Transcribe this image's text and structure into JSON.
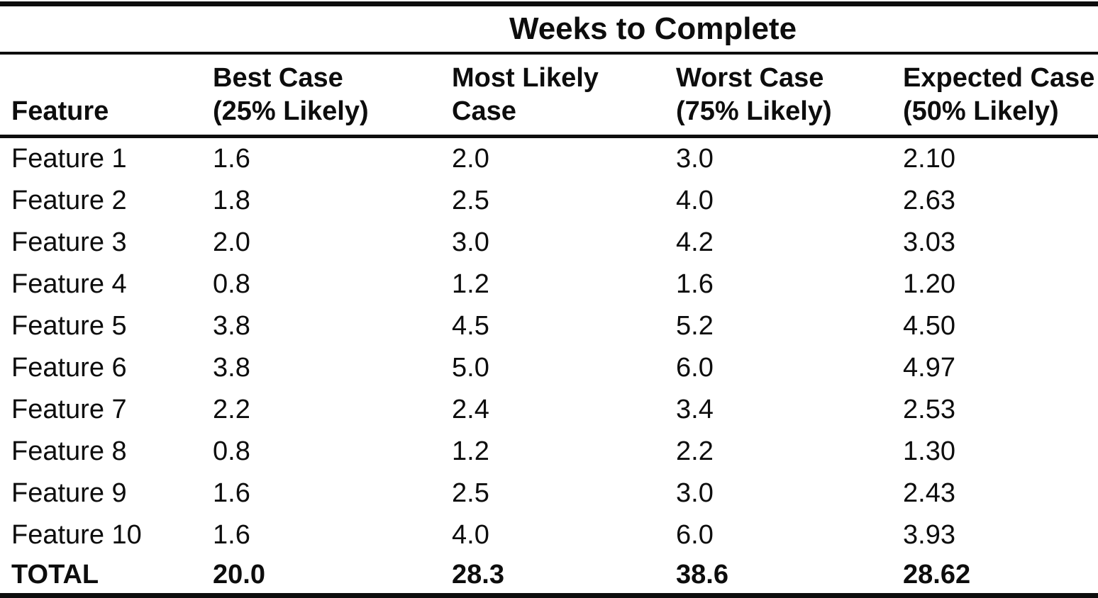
{
  "colors": {
    "ink": "#0d0d0d",
    "paper": "#ffffff"
  },
  "table": {
    "spanner": "Weeks to Complete",
    "columns": [
      {
        "line1": "Feature",
        "line2": ""
      },
      {
        "line1": "Best Case",
        "line2": "(25% Likely)"
      },
      {
        "line1": "Most Likely",
        "line2": "Case"
      },
      {
        "line1": "Worst Case",
        "line2": "(75% Likely)"
      },
      {
        "line1": "Expected Case",
        "line2": "(50% Likely)"
      }
    ],
    "rows": [
      {
        "feature": "Feature 1",
        "best": "1.6",
        "likely": "2.0",
        "worst": "3.0",
        "expected": "2.10"
      },
      {
        "feature": "Feature 2",
        "best": "1.8",
        "likely": "2.5",
        "worst": "4.0",
        "expected": "2.63"
      },
      {
        "feature": "Feature 3",
        "best": "2.0",
        "likely": "3.0",
        "worst": "4.2",
        "expected": "3.03"
      },
      {
        "feature": "Feature 4",
        "best": "0.8",
        "likely": "1.2",
        "worst": "1.6",
        "expected": "1.20"
      },
      {
        "feature": "Feature 5",
        "best": "3.8",
        "likely": "4.5",
        "worst": "5.2",
        "expected": "4.50"
      },
      {
        "feature": "Feature 6",
        "best": "3.8",
        "likely": "5.0",
        "worst": "6.0",
        "expected": "4.97"
      },
      {
        "feature": "Feature 7",
        "best": "2.2",
        "likely": "2.4",
        "worst": "3.4",
        "expected": "2.53"
      },
      {
        "feature": "Feature 8",
        "best": "0.8",
        "likely": "1.2",
        "worst": "2.2",
        "expected": "1.30"
      },
      {
        "feature": "Feature 9",
        "best": "1.6",
        "likely": "2.5",
        "worst": "3.0",
        "expected": "2.43"
      },
      {
        "feature": "Feature 10",
        "best": "1.6",
        "likely": "4.0",
        "worst": "6.0",
        "expected": "3.93"
      }
    ],
    "total": {
      "feature": "TOTAL",
      "best": "20.0",
      "likely": "28.3",
      "worst": "38.6",
      "expected": "28.62"
    }
  },
  "chart_data": {
    "type": "table",
    "title": "Weeks to Complete",
    "columns": [
      "Feature",
      "Best Case (25% Likely)",
      "Most Likely Case",
      "Worst Case (75% Likely)",
      "Expected Case (50% Likely)"
    ],
    "rows": [
      [
        "Feature 1",
        "1.6",
        "2.0",
        "3.0",
        "2.10"
      ],
      [
        "Feature 2",
        "1.8",
        "2.5",
        "4.0",
        "2.63"
      ],
      [
        "Feature 3",
        "2.0",
        "3.0",
        "4.2",
        "3.03"
      ],
      [
        "Feature 4",
        "0.8",
        "1.2",
        "1.6",
        "1.20"
      ],
      [
        "Feature 5",
        "3.8",
        "4.5",
        "5.2",
        "4.50"
      ],
      [
        "Feature 6",
        "3.8",
        "5.0",
        "6.0",
        "4.97"
      ],
      [
        "Feature 7",
        "2.2",
        "2.4",
        "3.4",
        "2.53"
      ],
      [
        "Feature 8",
        "0.8",
        "1.2",
        "2.2",
        "1.30"
      ],
      [
        "Feature 9",
        "1.6",
        "2.5",
        "3.0",
        "2.43"
      ],
      [
        "Feature 10",
        "1.6",
        "4.0",
        "6.0",
        "3.93"
      ],
      [
        "TOTAL",
        "20.0",
        "28.3",
        "38.6",
        "28.62"
      ]
    ]
  }
}
